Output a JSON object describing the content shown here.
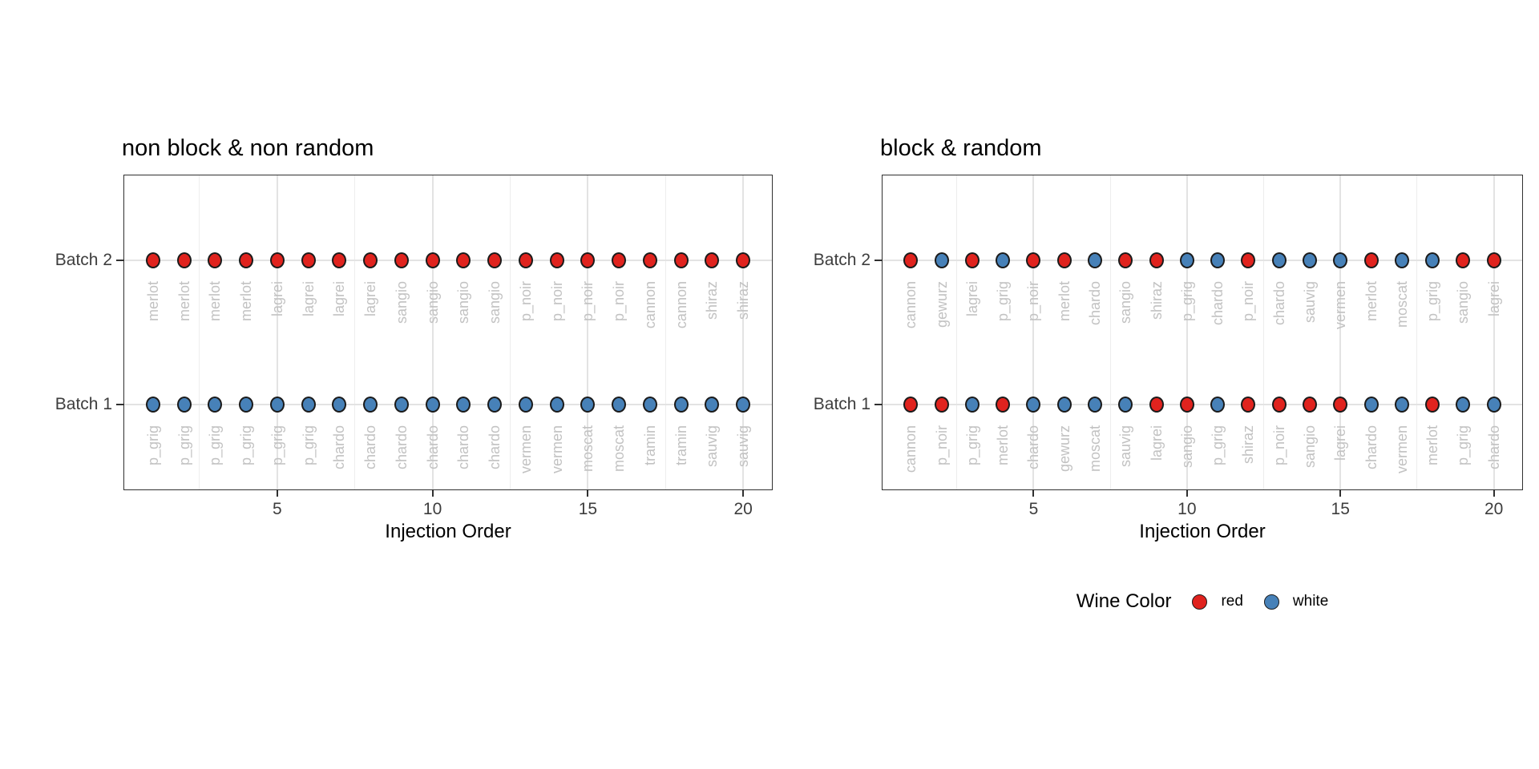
{
  "page": {
    "background": "#ffffff"
  },
  "colors": {
    "red": "#E0231E",
    "white": "#4781B8",
    "point_stroke": "#1B1B1B",
    "point_label": "#C2C2C2",
    "grid_major": "#E3E3E3",
    "grid_minor": "#EDEDED",
    "panel_border": "#303030",
    "axis_text": "#3D3D3D",
    "title_text": "#000000"
  },
  "legend": {
    "title": "Wine Color",
    "items": [
      {
        "label": "red",
        "color_key": "red"
      },
      {
        "label": "white",
        "color_key": "white"
      }
    ]
  },
  "chart_data": [
    {
      "type": "scatter",
      "title": "non block & non random",
      "xlabel": "Injection Order",
      "x_range": [
        1,
        20
      ],
      "x_ticks": [
        5,
        10,
        15,
        20
      ],
      "x_gridlines": [
        2.5,
        5,
        7.5,
        10,
        12.5,
        15,
        17.5,
        20
      ],
      "y_categories": [
        "Batch 2",
        "Batch 1"
      ],
      "grid": true,
      "legend_position": "none",
      "rows": [
        {
          "batch": "Batch 2",
          "wines": [
            "merlot",
            "merlot",
            "merlot",
            "merlot",
            "lagrei",
            "lagrei",
            "lagrei",
            "lagrei",
            "sangio",
            "sangio",
            "sangio",
            "sangio",
            "p_noir",
            "p_noir",
            "p_noir",
            "p_noir",
            "cannon",
            "cannon",
            "shiraz",
            "shiraz"
          ],
          "wine_colors": [
            "red",
            "red",
            "red",
            "red",
            "red",
            "red",
            "red",
            "red",
            "red",
            "red",
            "red",
            "red",
            "red",
            "red",
            "red",
            "red",
            "red",
            "red",
            "red",
            "red"
          ]
        },
        {
          "batch": "Batch 1",
          "wines": [
            "p_grig",
            "p_grig",
            "p_grig",
            "p_grig",
            "p_grig",
            "p_grig",
            "chardo",
            "chardo",
            "chardo",
            "chardo",
            "chardo",
            "chardo",
            "vermen",
            "vermen",
            "moscat",
            "moscat",
            "tramin",
            "tramin",
            "sauvig",
            "sauvig"
          ],
          "wine_colors": [
            "white",
            "white",
            "white",
            "white",
            "white",
            "white",
            "white",
            "white",
            "white",
            "white",
            "white",
            "white",
            "white",
            "white",
            "white",
            "white",
            "white",
            "white",
            "white",
            "white"
          ]
        }
      ]
    },
    {
      "type": "scatter",
      "title": "block & random",
      "xlabel": "Injection Order",
      "x_range": [
        1,
        20
      ],
      "x_ticks": [
        5,
        10,
        15,
        20
      ],
      "x_gridlines": [
        2.5,
        5,
        7.5,
        10,
        12.5,
        15,
        17.5,
        20
      ],
      "y_categories": [
        "Batch 2",
        "Batch 1"
      ],
      "grid": true,
      "legend_position": "bottom",
      "rows": [
        {
          "batch": "Batch 2",
          "wines": [
            "cannon",
            "gewurz",
            "lagrei",
            "p_grig",
            "p_noir",
            "merlot",
            "chardo",
            "sangio",
            "shiraz",
            "p_grig",
            "chardo",
            "p_noir",
            "chardo",
            "sauvig",
            "vermen",
            "merlot",
            "moscat",
            "p_grig",
            "sangio",
            "lagrei"
          ],
          "wine_colors": [
            "red",
            "white",
            "red",
            "white",
            "red",
            "red",
            "white",
            "red",
            "red",
            "white",
            "white",
            "red",
            "white",
            "white",
            "white",
            "red",
            "white",
            "white",
            "red",
            "red"
          ]
        },
        {
          "batch": "Batch 1",
          "wines": [
            "cannon",
            "p_noir",
            "p_grig",
            "merlot",
            "chardo",
            "gewurz",
            "moscat",
            "sauvig",
            "lagrei",
            "sangio",
            "p_grig",
            "shiraz",
            "p_noir",
            "sangio",
            "lagrei",
            "chardo",
            "vermen",
            "merlot",
            "p_grig",
            "chardo"
          ],
          "wine_colors": [
            "red",
            "red",
            "white",
            "red",
            "white",
            "white",
            "white",
            "white",
            "red",
            "red",
            "white",
            "red",
            "red",
            "red",
            "red",
            "white",
            "white",
            "red",
            "white",
            "white"
          ]
        }
      ]
    }
  ]
}
